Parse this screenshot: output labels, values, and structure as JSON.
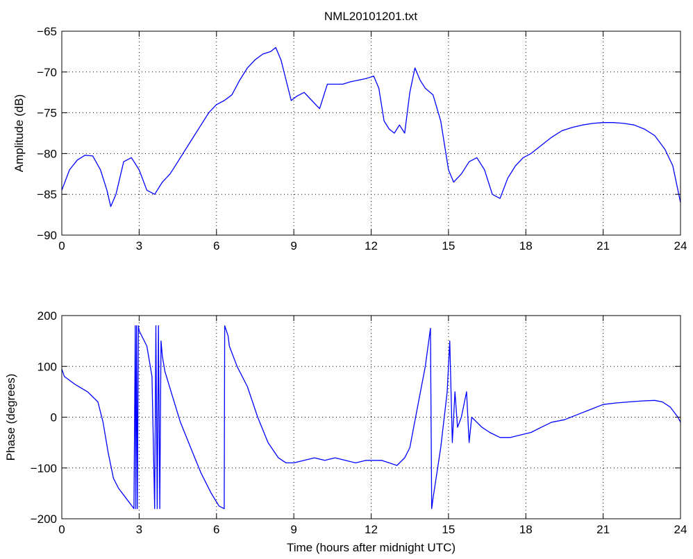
{
  "title": "NML20101201.txt",
  "colors": {
    "series": "#0000ff",
    "axes": "#000000",
    "grid": "#000000",
    "background": "#ffffff"
  },
  "chart_data": [
    {
      "type": "line",
      "ylabel": "Amplitude (dB)",
      "xlabel": "",
      "xlim": [
        0,
        24
      ],
      "ylim": [
        -90,
        -65
      ],
      "xticks": [
        0,
        3,
        6,
        9,
        12,
        15,
        18,
        21,
        24
      ],
      "xtick_labels": [
        "0",
        "3",
        "6",
        "9",
        "12",
        "15",
        "18",
        "21",
        "24"
      ],
      "yticks": [
        -90,
        -85,
        -80,
        -75,
        -70,
        -65
      ],
      "ytick_labels": [
        "−90",
        "−85",
        "−80",
        "−75",
        "−70",
        "−65"
      ],
      "grid": true,
      "series": [
        {
          "x": [
            0,
            0.3,
            0.6,
            0.9,
            1.2,
            1.5,
            1.75,
            1.9,
            2.1,
            2.4,
            2.7,
            3.0,
            3.3,
            3.6,
            3.9,
            4.2,
            4.5,
            4.8,
            5.1,
            5.4,
            5.7,
            6.0,
            6.3,
            6.6,
            6.9,
            7.2,
            7.5,
            7.8,
            8.1,
            8.3,
            8.5,
            8.7,
            8.9,
            9.1,
            9.4,
            9.7,
            10.0,
            10.3,
            10.6,
            10.9,
            11.2,
            11.5,
            11.8,
            12.1,
            12.3,
            12.5,
            12.7,
            12.9,
            13.1,
            13.3,
            13.5,
            13.7,
            13.9,
            14.1,
            14.4,
            14.7,
            15.0,
            15.2,
            15.5,
            15.8,
            16.1,
            16.4,
            16.7,
            17.0,
            17.3,
            17.6,
            17.9,
            18.2,
            18.6,
            19.0,
            19.4,
            19.8,
            20.2,
            20.6,
            21.0,
            21.4,
            21.8,
            22.2,
            22.6,
            23.0,
            23.4,
            23.7,
            24.0
          ],
          "y": [
            -84.5,
            -82.0,
            -80.8,
            -80.2,
            -80.3,
            -82.0,
            -84.5,
            -86.5,
            -85.0,
            -81.0,
            -80.5,
            -82.0,
            -84.5,
            -85.0,
            -83.5,
            -82.5,
            -81.0,
            -79.5,
            -78.0,
            -76.5,
            -75.0,
            -74.0,
            -73.5,
            -72.8,
            -71.0,
            -69.5,
            -68.5,
            -67.8,
            -67.5,
            -67.0,
            -68.5,
            -71.0,
            -73.5,
            -73.0,
            -72.5,
            -73.5,
            -74.5,
            -71.5,
            -71.5,
            -71.5,
            -71.2,
            -71.0,
            -70.8,
            -70.5,
            -72.0,
            -76.0,
            -77.0,
            -77.5,
            -76.5,
            -77.5,
            -72.5,
            -69.5,
            -71.0,
            -72.0,
            -72.8,
            -76.0,
            -82.0,
            -83.5,
            -82.5,
            -81.0,
            -80.5,
            -82.0,
            -85.0,
            -85.5,
            -83.0,
            -81.5,
            -80.5,
            -80.0,
            -79.0,
            -78.0,
            -77.2,
            -76.8,
            -76.5,
            -76.3,
            -76.2,
            -76.2,
            -76.3,
            -76.5,
            -77.0,
            -77.8,
            -79.5,
            -81.5,
            -86.0
          ]
        }
      ]
    },
    {
      "type": "line",
      "ylabel": "Phase (degrees)",
      "xlabel": "Time (hours after midnight UTC)",
      "xlim": [
        0,
        24
      ],
      "ylim": [
        -200,
        200
      ],
      "xticks": [
        0,
        3,
        6,
        9,
        12,
        15,
        18,
        21,
        24
      ],
      "xtick_labels": [
        "0",
        "3",
        "6",
        "9",
        "12",
        "15",
        "18",
        "21",
        "24"
      ],
      "yticks": [
        -200,
        -100,
        0,
        100,
        200
      ],
      "ytick_labels": [
        "−200",
        "−100",
        "0",
        "100",
        "200"
      ],
      "grid": true,
      "series": [
        {
          "x": [
            0,
            0.1,
            0.5,
            1.0,
            1.4,
            1.6,
            1.8,
            2.0,
            2.2,
            2.5,
            2.8,
            2.85,
            2.87,
            2.9,
            2.93,
            2.97,
            3.0,
            3.3,
            3.5,
            3.6,
            3.65,
            3.7,
            3.75,
            3.8,
            3.85,
            3.9,
            4.0,
            4.3,
            4.6,
            5.0,
            5.4,
            5.8,
            6.1,
            6.3,
            6.32,
            6.45,
            6.5,
            6.8,
            7.2,
            7.6,
            8.0,
            8.4,
            8.7,
            9.0,
            9.4,
            9.8,
            10.2,
            10.6,
            11.0,
            11.4,
            11.8,
            12.1,
            12.4,
            12.7,
            13.0,
            13.3,
            13.5,
            13.8,
            14.1,
            14.3,
            14.35,
            14.4,
            14.7,
            14.95,
            15.05,
            15.15,
            15.25,
            15.35,
            15.5,
            15.7,
            15.8,
            15.9,
            16.1,
            16.3,
            16.6,
            17.0,
            17.4,
            17.8,
            18.2,
            18.6,
            19.0,
            19.5,
            20.0,
            20.5,
            21.0,
            21.5,
            22.0,
            22.5,
            23.0,
            23.3,
            23.6,
            23.9,
            24.0
          ],
          "y": [
            95,
            80,
            65,
            50,
            30,
            -10,
            -70,
            -120,
            -140,
            -160,
            -180,
            180,
            -180,
            180,
            -180,
            180,
            170,
            140,
            80,
            -180,
            180,
            -180,
            180,
            -180,
            150,
            120,
            90,
            40,
            -10,
            -60,
            -110,
            -150,
            -175,
            -180,
            180,
            160,
            140,
            100,
            60,
            0,
            -50,
            -80,
            -90,
            -90,
            -85,
            -80,
            -85,
            -80,
            -85,
            -90,
            -85,
            -85,
            -85,
            -90,
            -95,
            -80,
            -60,
            20,
            100,
            175,
            -180,
            -160,
            -60,
            50,
            150,
            -50,
            50,
            -20,
            0,
            50,
            -50,
            0,
            -10,
            -20,
            -30,
            -40,
            -40,
            -35,
            -30,
            -20,
            -10,
            -5,
            5,
            15,
            25,
            28,
            30,
            32,
            33,
            30,
            20,
            0,
            -10
          ]
        }
      ]
    }
  ]
}
